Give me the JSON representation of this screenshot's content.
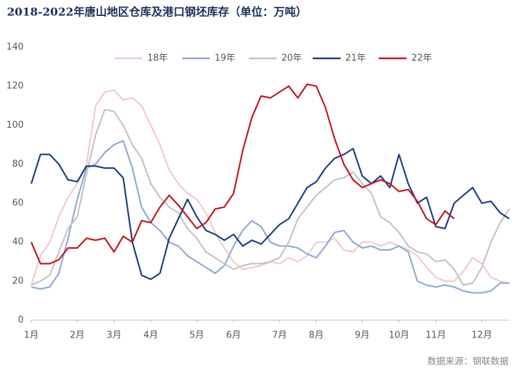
{
  "chart_data": {
    "type": "line",
    "title": "2018-2022年唐山地区仓库及港口钢坯库存（单位：万吨）",
    "source": "数据来源：钢联数据",
    "categories": [
      "1月",
      null,
      null,
      null,
      null,
      "2月",
      null,
      null,
      null,
      "3月",
      null,
      null,
      null,
      "4月",
      null,
      null,
      null,
      null,
      "5月",
      null,
      null,
      null,
      "6月",
      null,
      null,
      null,
      null,
      "7月",
      null,
      null,
      null,
      "8月",
      null,
      null,
      null,
      null,
      "9月",
      null,
      null,
      null,
      "10月",
      null,
      null,
      null,
      "11月",
      null,
      null,
      null,
      null,
      "12月",
      null,
      null,
      null
    ],
    "ylim": [
      0,
      140
    ],
    "yticks": [
      0,
      20,
      40,
      60,
      80,
      100,
      120,
      140
    ],
    "series": [
      {
        "name": "18年",
        "color": "#f2c9cc",
        "values": [
          18,
          33,
          40,
          53,
          63,
          70,
          80,
          110,
          117,
          118,
          113,
          114,
          110,
          100,
          90,
          77,
          70,
          65,
          62,
          55,
          45,
          37,
          30,
          26,
          27,
          28,
          30,
          29,
          32,
          30,
          33,
          40,
          40,
          42,
          36,
          35,
          40,
          40,
          38,
          40,
          38,
          36,
          33,
          27,
          22,
          20,
          20,
          25,
          32,
          29,
          22,
          20,
          19
        ]
      },
      {
        "name": "19年",
        "color": "#8ea9d6",
        "values": [
          17,
          16,
          17,
          24,
          42,
          62,
          78,
          80,
          86,
          90,
          92,
          78,
          58,
          50,
          46,
          40,
          38,
          33,
          30,
          27,
          24,
          28,
          38,
          46,
          51,
          48,
          40,
          38,
          38,
          37,
          34,
          32,
          38,
          45,
          46,
          40,
          37,
          38,
          36,
          36,
          38,
          35,
          20,
          18,
          17,
          18,
          17,
          15,
          14,
          14,
          15,
          19,
          19
        ]
      },
      {
        "name": "20年",
        "color": "#c3c3c3",
        "values": [
          18,
          20,
          23,
          35,
          47,
          53,
          75,
          95,
          108,
          107,
          100,
          90,
          83,
          70,
          63,
          58,
          55,
          47,
          42,
          35,
          32,
          29,
          26,
          28,
          29,
          29,
          30,
          32,
          40,
          52,
          58,
          64,
          68,
          72,
          73,
          76,
          70,
          65,
          53,
          50,
          45,
          38,
          35,
          34,
          30,
          31,
          26,
          18,
          19,
          27,
          40,
          50,
          57
        ]
      },
      {
        "name": "21年",
        "color": "#1b3d80",
        "values": [
          70,
          85,
          85,
          80,
          72,
          71,
          79,
          79,
          78,
          78,
          73,
          40,
          23,
          21,
          24,
          42,
          52,
          62,
          53,
          46,
          44,
          41,
          44,
          38,
          41,
          39,
          44,
          49,
          52,
          60,
          68,
          71,
          78,
          83,
          85,
          88,
          74,
          70,
          74,
          68,
          85,
          70,
          60,
          63,
          48,
          47,
          60,
          64,
          68,
          60,
          61,
          55,
          52
        ]
      },
      {
        "name": "22年",
        "color": "#c0161f",
        "values": [
          40,
          29,
          29,
          31,
          37,
          37,
          42,
          41,
          42,
          35,
          43,
          40,
          51,
          50,
          58,
          64,
          59,
          53,
          47,
          50,
          57,
          58,
          65,
          87,
          104,
          115,
          114,
          117,
          120,
          114,
          121,
          120,
          109,
          93,
          80,
          72,
          68,
          70,
          72,
          70,
          66,
          67,
          61,
          52,
          49,
          56,
          52,
          null,
          null,
          null,
          null,
          null,
          null
        ]
      }
    ]
  }
}
